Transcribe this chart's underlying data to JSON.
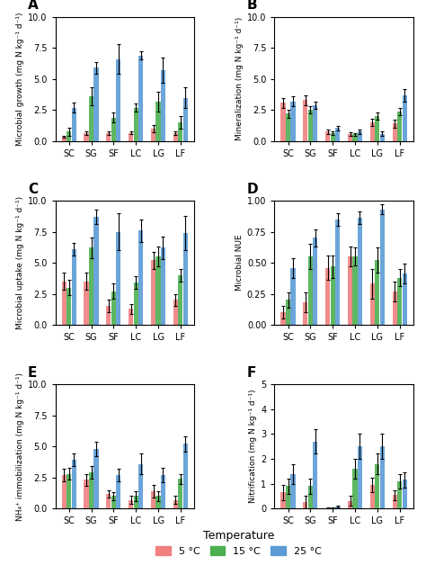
{
  "categories": [
    "SC",
    "SG",
    "SF",
    "LC",
    "LG",
    "LF"
  ],
  "colors": {
    "5C": "#F08080",
    "15C": "#4CAF50",
    "25C": "#5B9BD5"
  },
  "panels": {
    "A": {
      "title": "A",
      "ylabel": "Microbial growth (mg N kg⁻¹ d⁻¹)",
      "ylim": [
        0,
        10.0
      ],
      "yticks": [
        0.0,
        2.5,
        5.0,
        7.5,
        10.0
      ],
      "means": {
        "5C": [
          0.35,
          0.65,
          0.65,
          0.65,
          1.0,
          0.65
        ],
        "15C": [
          0.75,
          3.6,
          1.9,
          2.7,
          3.2,
          1.5
        ],
        "25C": [
          2.7,
          5.9,
          6.6,
          6.9,
          5.7,
          3.5
        ]
      },
      "errors": {
        "5C": [
          0.1,
          0.15,
          0.15,
          0.1,
          0.3,
          0.15
        ],
        "15C": [
          0.3,
          0.7,
          0.4,
          0.3,
          0.8,
          0.5
        ],
        "25C": [
          0.4,
          0.5,
          1.2,
          0.3,
          1.0,
          0.8
        ]
      }
    },
    "B": {
      "title": "B",
      "ylabel": "Mineralization (mg N kg⁻¹ d⁻¹)",
      "ylim": [
        0,
        10.0
      ],
      "yticks": [
        0.0,
        2.5,
        5.0,
        7.5,
        10.0
      ],
      "means": {
        "5C": [
          3.1,
          3.3,
          0.75,
          0.55,
          1.5,
          1.4
        ],
        "15C": [
          2.2,
          2.5,
          0.65,
          0.55,
          2.0,
          2.4
        ],
        "25C": [
          3.2,
          2.9,
          1.05,
          0.75,
          0.6,
          3.7
        ]
      },
      "errors": {
        "5C": [
          0.4,
          0.4,
          0.15,
          0.15,
          0.3,
          0.3
        ],
        "15C": [
          0.3,
          0.3,
          0.15,
          0.1,
          0.3,
          0.3
        ],
        "25C": [
          0.4,
          0.3,
          0.2,
          0.15,
          0.2,
          0.5
        ]
      }
    },
    "C": {
      "title": "C",
      "ylabel": "Microbial uptake (mg N kg⁻¹ d⁻¹)",
      "ylim": [
        0,
        10.0
      ],
      "yticks": [
        0.0,
        2.5,
        5.0,
        7.5,
        10.0
      ],
      "means": {
        "5C": [
          3.5,
          3.5,
          1.5,
          1.3,
          5.2,
          2.0
        ],
        "15C": [
          3.0,
          6.2,
          2.7,
          3.4,
          5.5,
          4.0
        ],
        "25C": [
          6.1,
          8.7,
          7.5,
          7.6,
          6.2,
          7.4
        ]
      },
      "errors": {
        "5C": [
          0.7,
          0.7,
          0.5,
          0.4,
          0.7,
          0.5
        ],
        "15C": [
          0.6,
          0.8,
          0.6,
          0.5,
          0.8,
          0.5
        ],
        "25C": [
          0.5,
          0.6,
          1.5,
          0.9,
          0.9,
          1.4
        ]
      }
    },
    "D": {
      "title": "D",
      "ylabel": "Microbial NUE",
      "ylim": [
        0,
        1.0
      ],
      "yticks": [
        0.0,
        0.25,
        0.5,
        0.75,
        1.0
      ],
      "means": {
        "5C": [
          0.1,
          0.18,
          0.46,
          0.55,
          0.33,
          0.27
        ],
        "15C": [
          0.2,
          0.55,
          0.47,
          0.55,
          0.52,
          0.38
        ],
        "25C": [
          0.46,
          0.7,
          0.85,
          0.86,
          0.93,
          0.41
        ]
      },
      "errors": {
        "5C": [
          0.05,
          0.08,
          0.1,
          0.08,
          0.12,
          0.08
        ],
        "15C": [
          0.06,
          0.1,
          0.09,
          0.07,
          0.1,
          0.07
        ],
        "25C": [
          0.08,
          0.07,
          0.05,
          0.05,
          0.04,
          0.08
        ]
      }
    },
    "E": {
      "title": "E",
      "ylabel": "NH₄⁺ immobilization (mg N kg⁻¹ d⁻¹)",
      "ylim": [
        0,
        10.0
      ],
      "yticks": [
        0.0,
        2.5,
        5.0,
        7.5,
        10.0
      ],
      "means": {
        "5C": [
          2.7,
          2.3,
          1.2,
          0.7,
          1.4,
          0.7
        ],
        "15C": [
          2.8,
          2.9,
          1.0,
          1.0,
          1.0,
          2.4
        ],
        "25C": [
          3.9,
          4.8,
          2.7,
          3.6,
          2.7,
          5.2
        ]
      },
      "errors": {
        "5C": [
          0.5,
          0.5,
          0.3,
          0.3,
          0.5,
          0.3
        ],
        "15C": [
          0.5,
          0.5,
          0.3,
          0.4,
          0.4,
          0.4
        ],
        "25C": [
          0.5,
          0.6,
          0.5,
          0.8,
          0.6,
          0.6
        ]
      }
    },
    "F": {
      "title": "F",
      "ylabel": "Nitrification (mg N kg⁻¹ d⁻¹)",
      "ylim": [
        0,
        5.0
      ],
      "yticks": [
        0,
        1,
        2,
        3,
        4,
        5
      ],
      "means": {
        "5C": [
          0.65,
          0.25,
          0.02,
          0.3,
          0.95,
          0.55
        ],
        "15C": [
          0.9,
          0.9,
          0.03,
          1.6,
          1.8,
          1.1
        ],
        "25C": [
          1.4,
          2.7,
          0.08,
          2.5,
          2.5,
          1.15
        ]
      },
      "errors": {
        "5C": [
          0.3,
          0.25,
          0.02,
          0.2,
          0.3,
          0.2
        ],
        "15C": [
          0.3,
          0.3,
          0.02,
          0.4,
          0.4,
          0.3
        ],
        "25C": [
          0.4,
          0.5,
          0.05,
          0.5,
          0.5,
          0.3
        ]
      }
    }
  },
  "legend": {
    "labels": [
      "5 °C",
      "15 °C",
      "25 °C"
    ],
    "colors": [
      "#F08080",
      "#4CAF50",
      "#5B9BD5"
    ]
  },
  "bar_width": 0.22,
  "panel_labels": [
    "A",
    "B",
    "C",
    "D",
    "E",
    "F"
  ],
  "background_color": "#ffffff"
}
